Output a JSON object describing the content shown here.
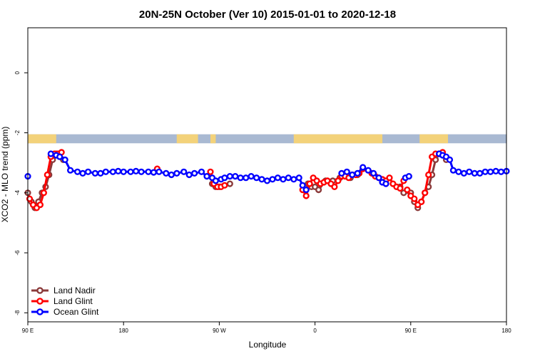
{
  "chart_data": {
    "type": "line",
    "title": "20N-25N October (Ver 10)   2015-01-01 to 2020-12-18",
    "xlabel": "Longitude",
    "ylabel": "XCO2 - MLO trend (ppm)",
    "xlim": [
      -90,
      180
    ],
    "ylim": [
      -8.3,
      1.5
    ],
    "x_ticks": [
      {
        "value": -90,
        "label": "90 E"
      },
      {
        "value": -36,
        "label": "180"
      },
      {
        "value": 18,
        "label": "90 W"
      },
      {
        "value": 72,
        "label": "0"
      },
      {
        "value": 126,
        "label": "90 E"
      },
      {
        "value": 180,
        "label": "180"
      }
    ],
    "y_ticks": [
      {
        "value": 0,
        "label": "0"
      },
      {
        "value": -2,
        "label": "-2"
      },
      {
        "value": -4,
        "label": "-4"
      },
      {
        "value": -6,
        "label": "-6"
      },
      {
        "value": -8,
        "label": "-8"
      }
    ],
    "map_strip": {
      "y_top": -2.05,
      "y_bottom": -2.35,
      "ocean_color": "#a9b9d2",
      "land_color": "#f3d27a"
    },
    "legend_position": "bottom-left",
    "series": [
      {
        "name": "Land Nadir",
        "color": "#8b3a3a",
        "segments": [
          [
            [
              -90,
              -4.0
            ],
            [
              -88,
              -4.3
            ],
            [
              -86,
              -4.5
            ],
            [
              -84,
              -4.3
            ],
            [
              -82,
              -4.0
            ],
            [
              -80,
              -3.8
            ],
            [
              -78,
              -3.4
            ],
            [
              -76,
              -2.9
            ],
            [
              -74,
              -2.7
            ],
            [
              -72,
              -2.7
            ],
            [
              -70,
              -2.9
            ]
          ],
          [
            [
              14,
              -3.7
            ],
            [
              16,
              -3.8
            ],
            [
              18,
              -3.8
            ],
            [
              24,
              -3.7
            ]
          ],
          [
            [
              68,
              -3.7
            ],
            [
              70,
              -3.8
            ],
            [
              72,
              -3.8
            ],
            [
              74,
              -3.9
            ],
            [
              78,
              -3.6
            ],
            [
              82,
              -3.6
            ],
            [
              86,
              -3.5
            ],
            [
              88,
              -3.4
            ],
            [
              92,
              -3.5
            ],
            [
              96,
              -3.4
            ]
          ],
          [
            [
              120,
              -3.8
            ],
            [
              122,
              -4.0
            ],
            [
              126,
              -4.0
            ],
            [
              128,
              -4.3
            ],
            [
              130,
              -4.5
            ],
            [
              132,
              -4.3
            ],
            [
              134,
              -4.0
            ],
            [
              136,
              -3.8
            ],
            [
              138,
              -3.4
            ],
            [
              140,
              -2.9
            ],
            [
              142,
              -2.7
            ],
            [
              144,
              -2.7
            ],
            [
              146,
              -2.9
            ]
          ]
        ]
      },
      {
        "name": "Land Glint",
        "color": "#ff0000",
        "segments": [
          [
            [
              -89,
              -4.2
            ],
            [
              -87,
              -4.4
            ],
            [
              -85,
              -4.5
            ],
            [
              -83,
              -4.4
            ],
            [
              -81,
              -4.0
            ],
            [
              -79,
              -3.4
            ],
            [
              -77,
              -2.8
            ],
            [
              -75,
              -2.7
            ],
            [
              -73,
              -2.7
            ],
            [
              -71,
              -2.65
            ]
          ],
          [
            [
              -17,
              -3.2
            ]
          ],
          [
            [
              13,
              -3.3
            ],
            [
              15,
              -3.7
            ],
            [
              17,
              -3.8
            ],
            [
              19,
              -3.8
            ],
            [
              21,
              -3.75
            ]
          ],
          [
            [
              65,
              -3.9
            ],
            [
              67,
              -4.1
            ],
            [
              69,
              -3.7
            ],
            [
              71,
              -3.5
            ],
            [
              73,
              -3.6
            ],
            [
              75,
              -3.7
            ],
            [
              77,
              -3.65
            ],
            [
              79,
              -3.6
            ],
            [
              81,
              -3.7
            ],
            [
              83,
              -3.8
            ],
            [
              85,
              -3.6
            ],
            [
              87,
              -3.45
            ],
            [
              89,
              -3.45
            ],
            [
              91,
              -3.5
            ],
            [
              93,
              -3.4
            ],
            [
              95,
              -3.4
            ],
            [
              97,
              -3.35
            ],
            [
              99,
              -3.2
            ]
          ],
          [
            [
              104,
              -3.35
            ],
            [
              106,
              -3.45
            ],
            [
              108,
              -3.5
            ],
            [
              110,
              -3.55
            ],
            [
              112,
              -3.6
            ],
            [
              114,
              -3.5
            ],
            [
              116,
              -3.7
            ],
            [
              118,
              -3.8
            ],
            [
              120,
              -3.85
            ],
            [
              122,
              -3.6
            ]
          ],
          [
            [
              124,
              -3.9
            ],
            [
              126,
              -4.1
            ],
            [
              128,
              -4.2
            ],
            [
              130,
              -4.4
            ],
            [
              132,
              -4.3
            ],
            [
              134,
              -4.0
            ],
            [
              136,
              -3.4
            ],
            [
              138,
              -2.8
            ],
            [
              140,
              -2.7
            ],
            [
              142,
              -2.7
            ],
            [
              144,
              -2.65
            ]
          ]
        ]
      },
      {
        "name": "Ocean Glint",
        "color": "#0000ff",
        "segments": [
          [
            [
              -90,
              -3.45
            ]
          ],
          [
            [
              -77,
              -2.7
            ],
            [
              -74,
              -2.75
            ],
            [
              -72,
              -2.8
            ],
            [
              -69,
              -2.9
            ],
            [
              -66,
              -3.25
            ],
            [
              -62,
              -3.3
            ],
            [
              -59,
              -3.35
            ],
            [
              -56,
              -3.3
            ],
            [
              -52,
              -3.35
            ],
            [
              -49,
              -3.35
            ],
            [
              -46,
              -3.3
            ],
            [
              -42,
              -3.3
            ],
            [
              -39,
              -3.28
            ],
            [
              -36,
              -3.3
            ],
            [
              -32,
              -3.3
            ],
            [
              -29,
              -3.28
            ],
            [
              -26,
              -3.3
            ],
            [
              -22,
              -3.3
            ],
            [
              -19,
              -3.32
            ],
            [
              -16,
              -3.3
            ],
            [
              -12,
              -3.35
            ],
            [
              -9,
              -3.4
            ],
            [
              -6,
              -3.35
            ],
            [
              -2,
              -3.3
            ],
            [
              1,
              -3.4
            ],
            [
              4,
              -3.35
            ],
            [
              8,
              -3.3
            ],
            [
              11,
              -3.45
            ],
            [
              14,
              -3.5
            ],
            [
              16,
              -3.6
            ],
            [
              19,
              -3.55
            ],
            [
              21,
              -3.5
            ],
            [
              24,
              -3.45
            ],
            [
              27,
              -3.45
            ],
            [
              30,
              -3.5
            ],
            [
              33,
              -3.5
            ],
            [
              36,
              -3.45
            ],
            [
              39,
              -3.5
            ],
            [
              42,
              -3.55
            ],
            [
              45,
              -3.6
            ],
            [
              48,
              -3.55
            ],
            [
              51,
              -3.5
            ],
            [
              54,
              -3.55
            ],
            [
              57,
              -3.5
            ],
            [
              60,
              -3.55
            ],
            [
              63,
              -3.5
            ],
            [
              65,
              -3.75
            ],
            [
              67,
              -3.9
            ]
          ],
          [
            [
              87,
              -3.35
            ],
            [
              90,
              -3.3
            ],
            [
              93,
              -3.4
            ],
            [
              96,
              -3.35
            ],
            [
              99,
              -3.15
            ],
            [
              102,
              -3.25
            ],
            [
              105,
              -3.35
            ],
            [
              108,
              -3.5
            ],
            [
              110,
              -3.65
            ],
            [
              112,
              -3.7
            ]
          ],
          [
            [
              123,
              -3.5
            ],
            [
              125,
              -3.45
            ]
          ],
          [
            [
              142,
              -2.7
            ],
            [
              144,
              -2.75
            ],
            [
              146,
              -2.8
            ],
            [
              148,
              -2.9
            ],
            [
              150,
              -3.25
            ],
            [
              153,
              -3.3
            ],
            [
              156,
              -3.35
            ],
            [
              159,
              -3.3
            ],
            [
              162,
              -3.35
            ],
            [
              165,
              -3.35
            ],
            [
              168,
              -3.3
            ],
            [
              171,
              -3.3
            ],
            [
              174,
              -3.28
            ],
            [
              177,
              -3.3
            ],
            [
              180,
              -3.28
            ]
          ]
        ]
      }
    ]
  }
}
